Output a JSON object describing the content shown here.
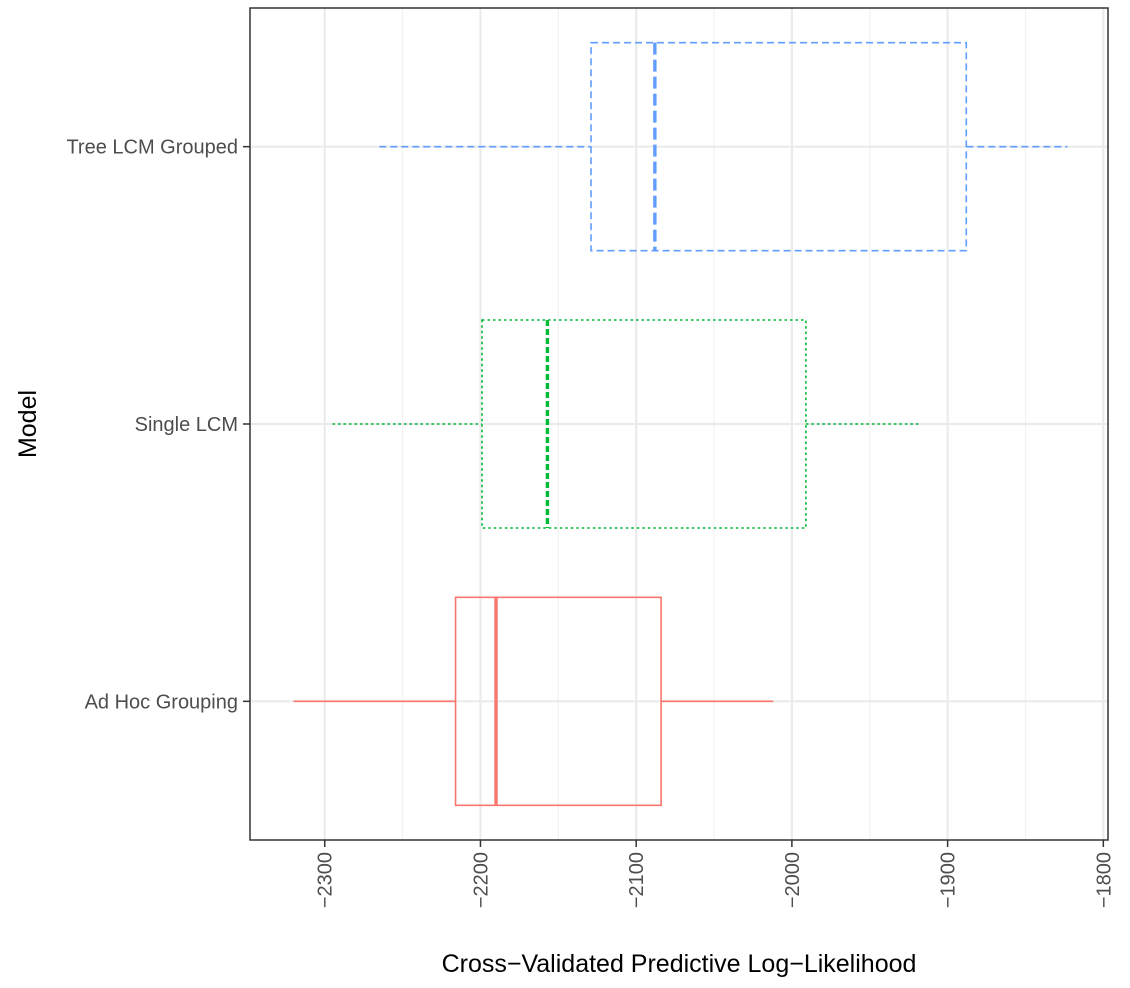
{
  "chart_data": {
    "type": "boxplot",
    "orientation": "horizontal",
    "xlabel": "Cross−Validated Predictive Log−Likelihood",
    "ylabel": "Model",
    "xlim": [
      -2348,
      -1797
    ],
    "x_ticks": [
      -2300,
      -2200,
      -2100,
      -2000,
      -1900,
      -1800
    ],
    "x_tick_labels": [
      "−2300",
      "−2200",
      "−2100",
      "−2000",
      "−1900",
      "−1800"
    ],
    "x_tick_label_rotation": -90,
    "grid": true,
    "theme": "black-and-white",
    "categories": [
      "Tree LCM Grouped",
      "Single LCM",
      "Ad Hoc Grouping"
    ],
    "boxes": [
      {
        "category": "Tree LCM Grouped",
        "whisker_low": -2265,
        "q1": -2129,
        "median": -2088,
        "q3": -1888,
        "whisker_high": -1823,
        "color": "#619CFF",
        "linetype": "dashed"
      },
      {
        "category": "Single LCM",
        "whisker_low": -2295,
        "q1": -2199,
        "median": -2157,
        "q3": -1991,
        "whisker_high": -1917,
        "color": "#00BA38",
        "linetype": "dotted"
      },
      {
        "category": "Ad Hoc Grouping",
        "whisker_low": -2320,
        "q1": -2216,
        "median": -2190,
        "q3": -2084,
        "whisker_high": -2012,
        "color": "#F8766D",
        "linetype": "solid"
      }
    ]
  }
}
